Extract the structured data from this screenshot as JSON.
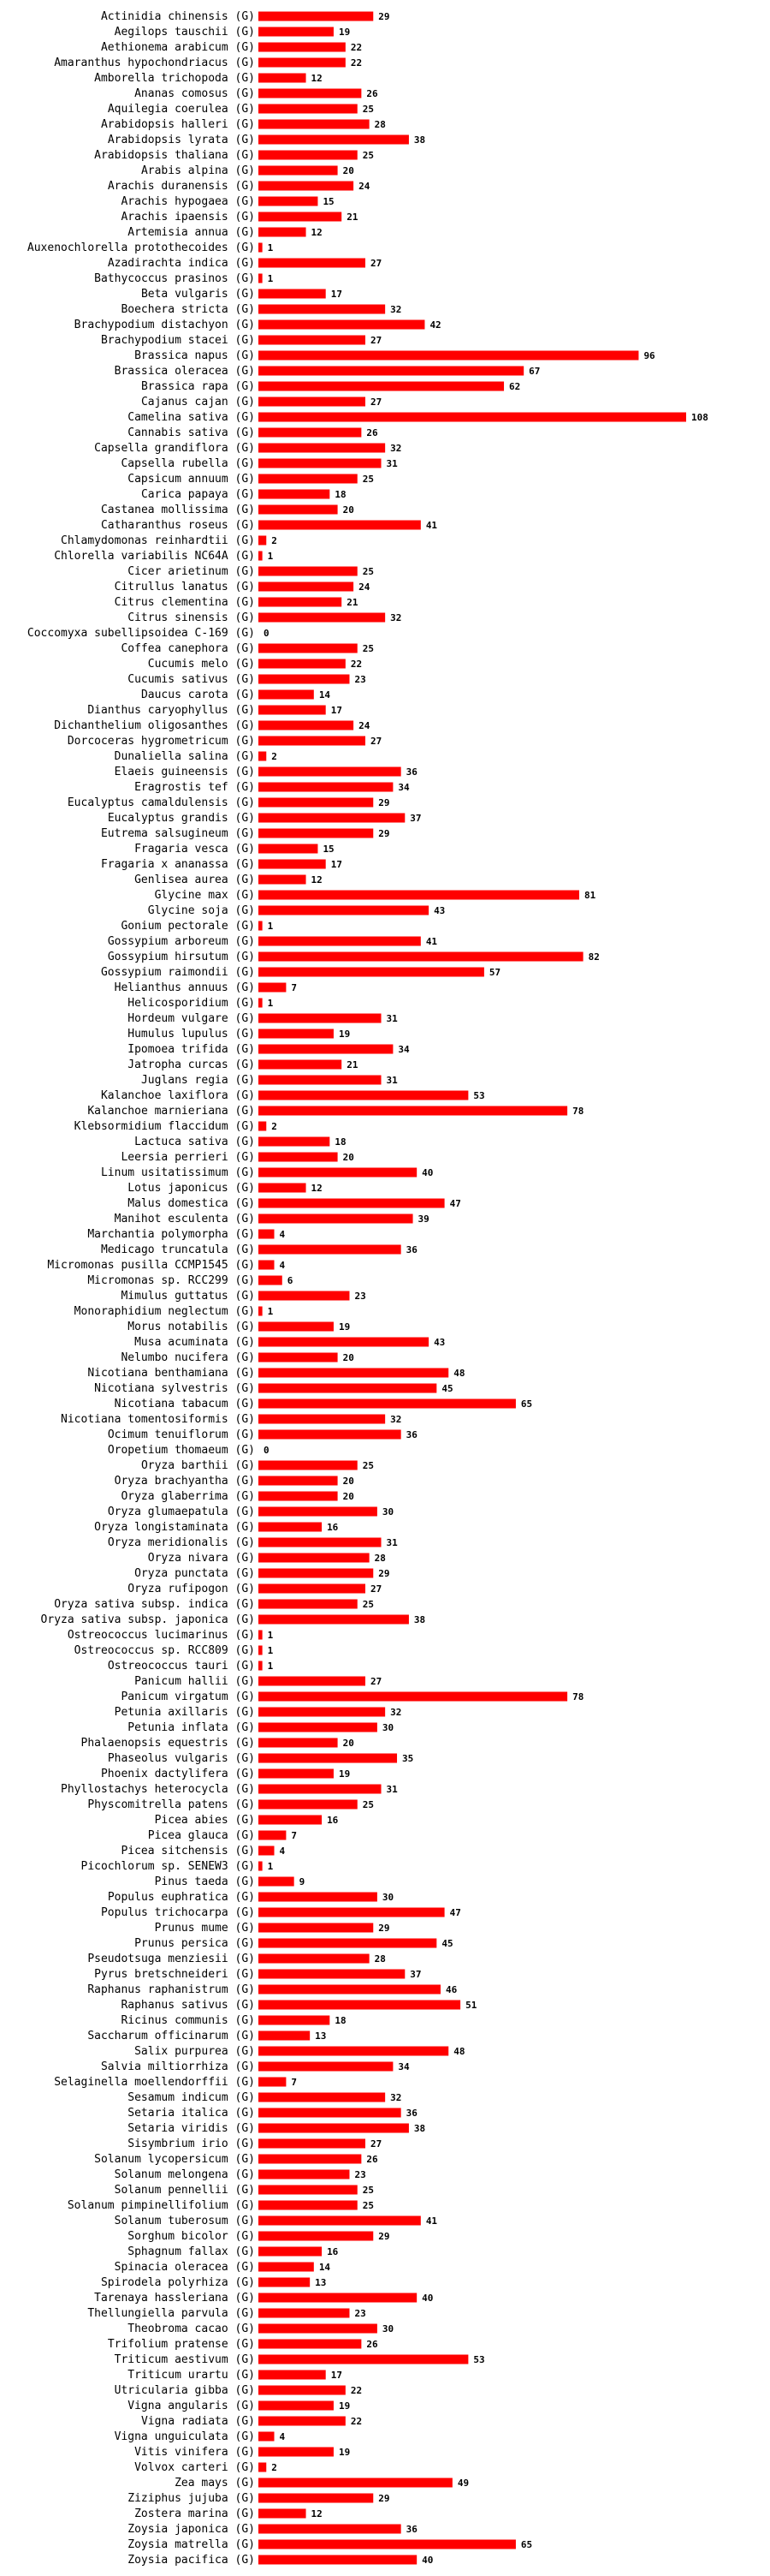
{
  "chart_data": {
    "type": "bar",
    "orientation": "horizontal",
    "title": "",
    "xlabel": "",
    "ylabel": "",
    "xlim": [
      0,
      108
    ],
    "bar_color": "#ff0000",
    "suffix": "(G)",
    "categories": [
      "Actinidia chinensis",
      "Aegilops tauschii",
      "Aethionema arabicum",
      "Amaranthus hypochondriacus",
      "Amborella trichopoda",
      "Ananas comosus",
      "Aquilegia coerulea",
      "Arabidopsis halleri",
      "Arabidopsis lyrata",
      "Arabidopsis thaliana",
      "Arabis alpina",
      "Arachis duranensis",
      "Arachis hypogaea",
      "Arachis ipaensis",
      "Artemisia annua",
      "Auxenochlorella protothecoides",
      "Azadirachta indica",
      "Bathycoccus prasinos",
      "Beta vulgaris",
      "Boechera stricta",
      "Brachypodium distachyon",
      "Brachypodium stacei",
      "Brassica napus",
      "Brassica oleracea",
      "Brassica rapa",
      "Cajanus cajan",
      "Camelina sativa",
      "Cannabis sativa",
      "Capsella grandiflora",
      "Capsella rubella",
      "Capsicum annuum",
      "Carica papaya",
      "Castanea mollissima",
      "Catharanthus roseus",
      "Chlamydomonas reinhardtii",
      "Chlorella variabilis NC64A",
      "Cicer arietinum",
      "Citrullus lanatus",
      "Citrus clementina",
      "Citrus sinensis",
      "Coccomyxa subellipsoidea C-169",
      "Coffea canephora",
      "Cucumis melo",
      "Cucumis sativus",
      "Daucus carota",
      "Dianthus caryophyllus",
      "Dichanthelium oligosanthes",
      "Dorcoceras hygrometricum",
      "Dunaliella salina",
      "Elaeis guineensis",
      "Eragrostis tef",
      "Eucalyptus camaldulensis",
      "Eucalyptus grandis",
      "Eutrema salsugineum",
      "Fragaria vesca",
      "Fragaria x ananassa",
      "Genlisea aurea",
      "Glycine max",
      "Glycine soja",
      "Gonium pectorale",
      "Gossypium arboreum",
      "Gossypium hirsutum",
      "Gossypium raimondii",
      "Helianthus annuus",
      "Helicosporidium",
      "Hordeum vulgare",
      "Humulus lupulus",
      "Ipomoea trifida",
      "Jatropha curcas",
      "Juglans regia",
      "Kalanchoe laxiflora",
      "Kalanchoe marnieriana",
      "Klebsormidium flaccidum",
      "Lactuca sativa",
      "Leersia perrieri",
      "Linum usitatissimum",
      "Lotus japonicus",
      "Malus domestica",
      "Manihot esculenta",
      "Marchantia polymorpha",
      "Medicago truncatula",
      "Micromonas pusilla CCMP1545",
      "Micromonas sp. RCC299",
      "Mimulus guttatus",
      "Monoraphidium neglectum",
      "Morus notabilis",
      "Musa acuminata",
      "Nelumbo nucifera",
      "Nicotiana benthamiana",
      "Nicotiana sylvestris",
      "Nicotiana tabacum",
      "Nicotiana tomentosiformis",
      "Ocimum tenuiflorum",
      "Oropetium thomaeum",
      "Oryza barthii",
      "Oryza brachyantha",
      "Oryza glaberrima",
      "Oryza glumaepatula",
      "Oryza longistaminata",
      "Oryza meridionalis",
      "Oryza nivara",
      "Oryza punctata",
      "Oryza rufipogon",
      "Oryza sativa subsp. indica",
      "Oryza sativa subsp. japonica",
      "Ostreococcus lucimarinus",
      "Ostreococcus sp. RCC809",
      "Ostreococcus tauri",
      "Panicum hallii",
      "Panicum virgatum",
      "Petunia axillaris",
      "Petunia inflata",
      "Phalaenopsis equestris",
      "Phaseolus vulgaris",
      "Phoenix dactylifera",
      "Phyllostachys heterocycla",
      "Physcomitrella patens",
      "Picea abies",
      "Picea glauca",
      "Picea sitchensis",
      "Picochlorum sp. SENEW3",
      "Pinus taeda",
      "Populus euphratica",
      "Populus trichocarpa",
      "Prunus mume",
      "Prunus persica",
      "Pseudotsuga menziesii",
      "Pyrus bretschneideri",
      "Raphanus raphanistrum",
      "Raphanus sativus",
      "Ricinus communis",
      "Saccharum officinarum",
      "Salix purpurea",
      "Salvia miltiorrhiza",
      "Selaginella moellendorffii",
      "Sesamum indicum",
      "Setaria italica",
      "Setaria viridis",
      "Sisymbrium irio",
      "Solanum lycopersicum",
      "Solanum melongena",
      "Solanum pennellii",
      "Solanum pimpinellifolium",
      "Solanum tuberosum",
      "Sorghum bicolor",
      "Sphagnum fallax",
      "Spinacia oleracea",
      "Spirodela polyrhiza",
      "Tarenaya hassleriana",
      "Thellungiella parvula",
      "Theobroma cacao",
      "Trifolium pratense",
      "Triticum aestivum",
      "Triticum urartu",
      "Utricularia gibba",
      "Vigna angularis",
      "Vigna radiata",
      "Vigna unguiculata",
      "Vitis vinifera",
      "Volvox carteri",
      "Zea mays",
      "Ziziphus jujuba",
      "Zostera marina",
      "Zoysia japonica",
      "Zoysia matrella",
      "Zoysia pacifica"
    ],
    "values": [
      29,
      19,
      22,
      22,
      12,
      26,
      25,
      28,
      38,
      25,
      20,
      24,
      15,
      21,
      12,
      1,
      27,
      1,
      17,
      32,
      42,
      27,
      96,
      67,
      62,
      27,
      108,
      26,
      32,
      31,
      25,
      18,
      20,
      41,
      2,
      1,
      25,
      24,
      21,
      32,
      0,
      25,
      22,
      23,
      14,
      17,
      24,
      27,
      2,
      36,
      34,
      29,
      37,
      29,
      15,
      17,
      12,
      81,
      43,
      1,
      41,
      82,
      57,
      7,
      1,
      31,
      19,
      34,
      21,
      31,
      53,
      78,
      2,
      18,
      20,
      40,
      12,
      47,
      39,
      4,
      36,
      4,
      6,
      23,
      1,
      19,
      43,
      20,
      48,
      45,
      65,
      32,
      36,
      0,
      25,
      20,
      20,
      30,
      16,
      31,
      28,
      29,
      27,
      25,
      38,
      1,
      1,
      1,
      27,
      78,
      32,
      30,
      20,
      35,
      19,
      31,
      25,
      16,
      7,
      4,
      1,
      9,
      30,
      47,
      29,
      45,
      28,
      37,
      46,
      51,
      18,
      13,
      48,
      34,
      7,
      32,
      36,
      38,
      27,
      26,
      23,
      25,
      25,
      41,
      29,
      16,
      14,
      13,
      40,
      23,
      30,
      26,
      53,
      17,
      22,
      19,
      22,
      4,
      19,
      2,
      49,
      29,
      12,
      36,
      65,
      40
    ]
  }
}
